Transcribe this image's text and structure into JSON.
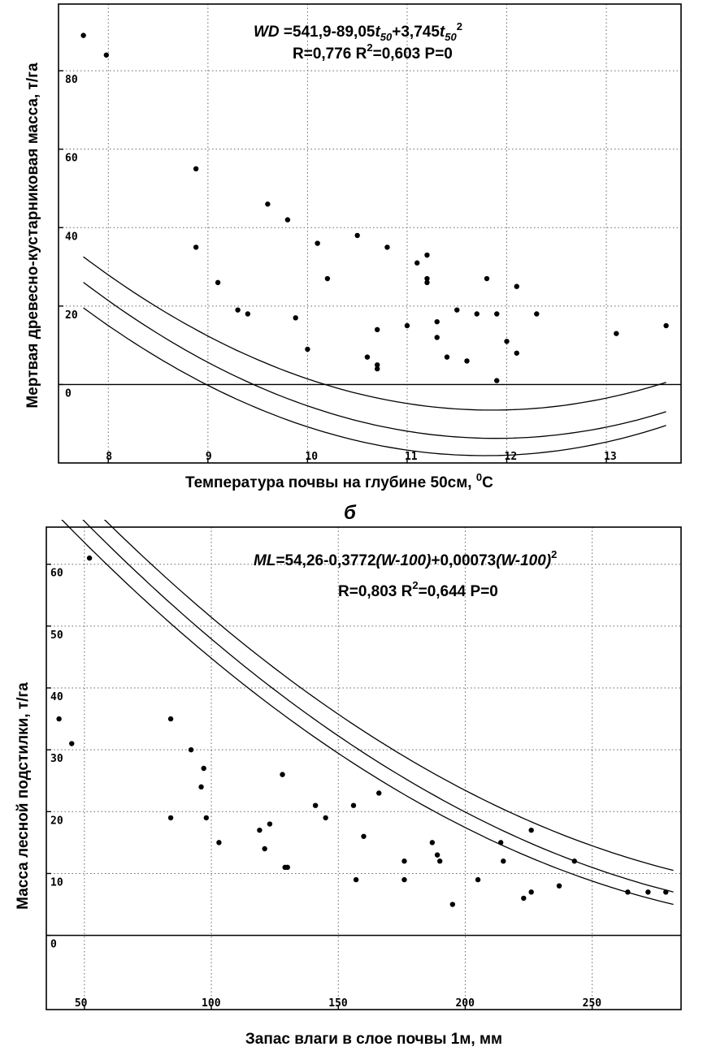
{
  "panel_label_b": "б",
  "chart_data": [
    {
      "type": "scatter",
      "title": "",
      "xlabel": "Температура почвы на глубине 50см,",
      "xlabel_unit_sup": "0",
      "xlabel_unit": "C",
      "ylabel": "Мертвая древесно-кустарниковая масса, т/га",
      "xlim": [
        7.5,
        13.75
      ],
      "ylim": [
        -20,
        97
      ],
      "grid": true,
      "x_ticks": [
        8,
        9,
        10,
        11,
        12,
        13
      ],
      "x_tick_labels": [
        "8",
        "9",
        "10",
        "11",
        "12",
        "13"
      ],
      "y_ticks": [
        0,
        20,
        40,
        60,
        80
      ],
      "y_tick_labels": [
        "0",
        "20",
        "40",
        "60",
        "80"
      ],
      "equation": {
        "lhs": "WD",
        "rhs_a": " =541,9-89,05",
        "t_main": "t",
        "t_sub": "50",
        "rhs_b": "+3,745",
        "sq": "2",
        "stats_a": "R=0,776 R",
        "stats_sup": "2",
        "stats_b": "=0,603 P=0"
      },
      "fit": {
        "a": 541.9,
        "b": -89.05,
        "c": 3.745,
        "xmin": 7.75,
        "xmax": 13.6,
        "band_lower": [
          6.5,
          3.5
        ],
        "band_upper": [
          6.5,
          7.5
        ]
      },
      "points": [
        [
          7.75,
          89
        ],
        [
          7.98,
          84
        ],
        [
          8.88,
          55
        ],
        [
          8.88,
          35
        ],
        [
          9.1,
          26
        ],
        [
          9.3,
          19
        ],
        [
          9.4,
          18
        ],
        [
          9.6,
          46
        ],
        [
          9.8,
          42
        ],
        [
          9.88,
          17
        ],
        [
          10.0,
          9
        ],
        [
          10.1,
          36
        ],
        [
          10.2,
          27
        ],
        [
          10.5,
          38
        ],
        [
          10.6,
          7
        ],
        [
          10.7,
          14
        ],
        [
          10.7,
          5
        ],
        [
          10.7,
          4
        ],
        [
          10.8,
          35
        ],
        [
          11.0,
          15
        ],
        [
          11.1,
          31
        ],
        [
          11.2,
          33
        ],
        [
          11.2,
          27
        ],
        [
          11.2,
          26
        ],
        [
          11.3,
          16
        ],
        [
          11.3,
          12
        ],
        [
          11.4,
          7
        ],
        [
          11.5,
          19
        ],
        [
          11.6,
          6
        ],
        [
          11.7,
          18
        ],
        [
          11.8,
          27
        ],
        [
          11.9,
          18
        ],
        [
          11.9,
          1
        ],
        [
          12.0,
          11
        ],
        [
          12.1,
          25
        ],
        [
          12.1,
          8
        ],
        [
          12.3,
          18
        ],
        [
          13.1,
          13
        ],
        [
          13.6,
          15
        ]
      ]
    },
    {
      "type": "scatter",
      "title": "",
      "xlabel": "Запас влаги в слое почвы 1м, мм",
      "ylabel": "Масса лесной подстилки, т/га",
      "xlim": [
        35,
        285
      ],
      "ylim": [
        -12,
        66
      ],
      "grid": true,
      "x_ticks": [
        50,
        100,
        150,
        200,
        250
      ],
      "x_tick_labels": [
        "50",
        "100",
        "150",
        "200",
        "250"
      ],
      "y_ticks": [
        0,
        10,
        20,
        30,
        40,
        50,
        60
      ],
      "y_tick_labels": [
        "0",
        "10",
        "20",
        "30",
        "40",
        "50",
        "60"
      ],
      "equation": {
        "lhs": "ML",
        "rhs_a": "=54,26-0,3772",
        "term1": "(W-100)",
        "rhs_b": "+0,00073",
        "term2": "(W-100)",
        "sq": "2",
        "stats_a": "R=0,803  R",
        "stats_sup": "2",
        "stats_b": "=0,644  P=0"
      },
      "fit": {
        "a": 54.26,
        "b": -0.3772,
        "c": 0.00073,
        "shift": 100,
        "xmin": 40,
        "xmax": 282,
        "band_lower": [
          3.5,
          2.0
        ],
        "band_upper": [
          3.5,
          3.5
        ]
      },
      "points": [
        [
          40,
          35
        ],
        [
          45,
          31
        ],
        [
          52,
          61
        ],
        [
          84,
          35
        ],
        [
          84,
          19
        ],
        [
          92,
          30
        ],
        [
          96,
          24
        ],
        [
          97,
          27
        ],
        [
          98,
          19
        ],
        [
          103,
          15
        ],
        [
          119,
          17
        ],
        [
          121,
          14
        ],
        [
          123,
          18
        ],
        [
          128,
          26
        ],
        [
          129,
          11
        ],
        [
          130,
          11
        ],
        [
          141,
          21
        ],
        [
          145,
          19
        ],
        [
          156,
          21
        ],
        [
          157,
          9
        ],
        [
          160,
          16
        ],
        [
          166,
          23
        ],
        [
          176,
          12
        ],
        [
          176,
          9
        ],
        [
          187,
          15
        ],
        [
          189,
          13
        ],
        [
          190,
          12
        ],
        [
          195,
          5
        ],
        [
          205,
          9
        ],
        [
          214,
          15
        ],
        [
          215,
          12
        ],
        [
          223,
          6
        ],
        [
          226,
          17
        ],
        [
          226,
          7
        ],
        [
          237,
          8
        ],
        [
          243,
          12
        ],
        [
          264,
          7
        ],
        [
          272,
          7
        ],
        [
          279,
          7
        ]
      ]
    }
  ]
}
